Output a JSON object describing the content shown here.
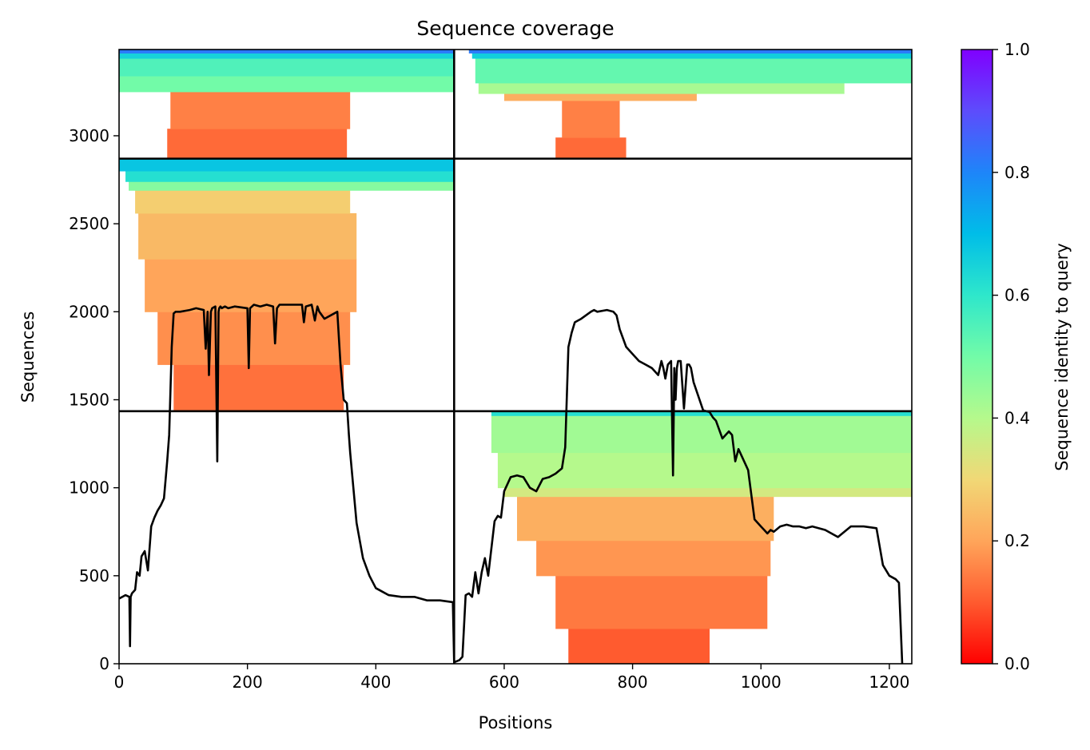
{
  "chart_data": {
    "type": "heatmap",
    "title": "Sequence coverage",
    "xlabel": "Positions",
    "ylabel": "Sequences",
    "xlim": [
      0,
      1235
    ],
    "ylim": [
      0,
      3490
    ],
    "x_ticks": [
      0,
      200,
      400,
      600,
      800,
      1000,
      1200
    ],
    "y_ticks": [
      0,
      500,
      1000,
      1500,
      2000,
      2500,
      3000
    ],
    "colorbar": {
      "label": "Sequence identity to query",
      "colormap": "rainbow_r",
      "range": [
        0.0,
        1.0
      ],
      "ticks": [
        "0.0",
        "0.2",
        "0.4",
        "0.6",
        "0.8",
        "1.0"
      ],
      "stops": [
        "#ff0000",
        "#ff5b2f",
        "#ffa55a",
        "#f1d876",
        "#b5f98c",
        "#72fba8",
        "#2ee7cb",
        "#00bde8",
        "#1e85f9",
        "#5d4cfc",
        "#8000ff"
      ]
    },
    "dividers": {
      "vertical_x": 522,
      "horizontal_y": [
        1435,
        2870
      ]
    },
    "blocks": [
      {
        "name": "chain-1-block-1",
        "bands": [
          {
            "y0": 0,
            "y1": 1435,
            "x0": 0,
            "x1": 0,
            "identity": 0.0
          }
        ]
      },
      {
        "name": "chain-1-block-2",
        "bands": [
          {
            "y0": 1435,
            "y1": 1700,
            "x0": 85,
            "x1": 350,
            "identity": 0.13
          },
          {
            "y0": 1700,
            "y1": 2000,
            "x0": 60,
            "x1": 360,
            "identity": 0.17
          },
          {
            "y0": 2000,
            "y1": 2300,
            "x0": 40,
            "x1": 370,
            "identity": 0.2
          },
          {
            "y0": 2300,
            "y1": 2560,
            "x0": 30,
            "x1": 370,
            "identity": 0.24
          },
          {
            "y0": 2560,
            "y1": 2690,
            "x0": 25,
            "x1": 360,
            "identity": 0.28
          },
          {
            "y0": 2690,
            "y1": 2740,
            "x0": 15,
            "x1": 522,
            "identity": 0.47
          },
          {
            "y0": 2740,
            "y1": 2800,
            "x0": 10,
            "x1": 522,
            "identity": 0.62
          },
          {
            "y0": 2800,
            "y1": 2870,
            "x0": 0,
            "x1": 522,
            "identity": 0.68
          }
        ]
      },
      {
        "name": "chain-1-block-3",
        "bands": [
          {
            "y0": 2870,
            "y1": 3040,
            "x0": 75,
            "x1": 355,
            "identity": 0.12
          },
          {
            "y0": 3040,
            "y1": 3250,
            "x0": 80,
            "x1": 360,
            "identity": 0.15
          },
          {
            "y0": 3250,
            "y1": 3340,
            "x0": 0,
            "x1": 522,
            "identity": 0.5
          },
          {
            "y0": 3340,
            "y1": 3440,
            "x0": 0,
            "x1": 522,
            "identity": 0.55
          },
          {
            "y0": 3440,
            "y1": 3470,
            "x0": 0,
            "x1": 522,
            "identity": 0.65
          },
          {
            "y0": 3470,
            "y1": 3490,
            "x0": 0,
            "x1": 522,
            "identity": 0.82
          }
        ]
      },
      {
        "name": "chain-2-block-1",
        "bands": [
          {
            "y0": 0,
            "y1": 200,
            "x0": 700,
            "x1": 920,
            "identity": 0.1
          },
          {
            "y0": 200,
            "y1": 500,
            "x0": 680,
            "x1": 1010,
            "identity": 0.14
          },
          {
            "y0": 500,
            "y1": 700,
            "x0": 650,
            "x1": 1015,
            "identity": 0.18
          },
          {
            "y0": 700,
            "y1": 950,
            "x0": 620,
            "x1": 1020,
            "identity": 0.22
          },
          {
            "y0": 950,
            "y1": 1000,
            "x0": 600,
            "x1": 1235,
            "identity": 0.35
          },
          {
            "y0": 1000,
            "y1": 1200,
            "x0": 590,
            "x1": 1235,
            "identity": 0.4
          },
          {
            "y0": 1200,
            "y1": 1410,
            "x0": 580,
            "x1": 1235,
            "identity": 0.43
          },
          {
            "y0": 1410,
            "y1": 1435,
            "x0": 580,
            "x1": 1235,
            "identity": 0.62
          }
        ]
      },
      {
        "name": "chain-2-block-2",
        "bands": [
          {
            "y0": 1435,
            "y1": 1435,
            "x0": 522,
            "x1": 522,
            "identity": 0.0
          }
        ]
      },
      {
        "name": "chain-2-block-3",
        "bands": [
          {
            "y0": 2870,
            "y1": 2990,
            "x0": 680,
            "x1": 790,
            "identity": 0.12
          },
          {
            "y0": 2990,
            "y1": 3200,
            "x0": 690,
            "x1": 780,
            "identity": 0.15
          },
          {
            "y0": 3200,
            "y1": 3240,
            "x0": 600,
            "x1": 900,
            "identity": 0.22
          },
          {
            "y0": 3240,
            "y1": 3300,
            "x0": 560,
            "x1": 1130,
            "identity": 0.42
          },
          {
            "y0": 3300,
            "y1": 3440,
            "x0": 555,
            "x1": 1235,
            "identity": 0.52
          },
          {
            "y0": 3440,
            "y1": 3470,
            "x0": 550,
            "x1": 1235,
            "identity": 0.66
          },
          {
            "y0": 3470,
            "y1": 3490,
            "x0": 545,
            "x1": 1235,
            "identity": 0.82
          }
        ]
      }
    ],
    "coverage_line": {
      "x": [
        0,
        10,
        16,
        17,
        18,
        20,
        25,
        28,
        32,
        35,
        40,
        45,
        50,
        55,
        60,
        65,
        70,
        75,
        78,
        82,
        85,
        88,
        95,
        110,
        120,
        132,
        135,
        138,
        140,
        143,
        145,
        150,
        153,
        155,
        156,
        158,
        160,
        165,
        170,
        180,
        200,
        202,
        204,
        210,
        220,
        230,
        240,
        243,
        246,
        250,
        270,
        285,
        288,
        291,
        300,
        305,
        309,
        312,
        320,
        340,
        345,
        350,
        355,
        358,
        360,
        365,
        370,
        375,
        380,
        390,
        400,
        410,
        420,
        440,
        460,
        480,
        500,
        520,
        522,
        523,
        530,
        535,
        540,
        545,
        550,
        555,
        560,
        565,
        570,
        575,
        585,
        590,
        595,
        600,
        610,
        620,
        630,
        640,
        650,
        660,
        670,
        680,
        690,
        695,
        700,
        705,
        710,
        720,
        735,
        740,
        745,
        760,
        770,
        775,
        780,
        790,
        800,
        810,
        820,
        830,
        840,
        845,
        848,
        851,
        855,
        860,
        863,
        865,
        867,
        869,
        871,
        875,
        880,
        885,
        888,
        891,
        895,
        910,
        920,
        925,
        930,
        940,
        950,
        955,
        960,
        965,
        975,
        980,
        990,
        1000,
        1005,
        1010,
        1015,
        1020,
        1030,
        1040,
        1050,
        1060,
        1070,
        1080,
        1100,
        1120,
        1140,
        1160,
        1180,
        1190,
        1200,
        1210,
        1215,
        1220,
        1223,
        1225,
        1228,
        1232,
        1235
      ],
      "y": [
        370,
        390,
        380,
        100,
        380,
        400,
        420,
        520,
        500,
        610,
        640,
        530,
        780,
        830,
        870,
        900,
        940,
        1150,
        1300,
        1800,
        1990,
        2000,
        2000,
        2010,
        2020,
        2010,
        1790,
        2000,
        1640,
        2000,
        2020,
        2030,
        1150,
        2000,
        2020,
        2030,
        2020,
        2030,
        2020,
        2030,
        2020,
        1680,
        2020,
        2040,
        2030,
        2040,
        2030,
        1820,
        2020,
        2040,
        2040,
        2040,
        1940,
        2030,
        2040,
        1950,
        2030,
        2000,
        1960,
        2000,
        1700,
        1500,
        1480,
        1300,
        1200,
        1000,
        800,
        700,
        600,
        500,
        430,
        410,
        390,
        380,
        380,
        360,
        360,
        350,
        10,
        10,
        20,
        40,
        390,
        400,
        380,
        520,
        400,
        520,
        600,
        500,
        810,
        840,
        830,
        980,
        1060,
        1070,
        1060,
        1000,
        980,
        1050,
        1060,
        1080,
        1110,
        1230,
        1800,
        1880,
        1940,
        1960,
        2000,
        2010,
        2000,
        2010,
        2000,
        1980,
        1900,
        1800,
        1760,
        1720,
        1700,
        1680,
        1640,
        1720,
        1680,
        1620,
        1700,
        1720,
        1070,
        1680,
        1500,
        1680,
        1720,
        1720,
        1450,
        1700,
        1700,
        1680,
        1600,
        1440,
        1430,
        1400,
        1380,
        1280,
        1320,
        1300,
        1150,
        1220,
        1140,
        1100,
        820,
        780,
        760,
        740,
        760,
        750,
        780,
        790,
        780,
        780,
        770,
        780,
        760,
        720,
        780,
        780,
        770,
        560,
        500,
        480,
        460,
        0
      ]
    }
  }
}
